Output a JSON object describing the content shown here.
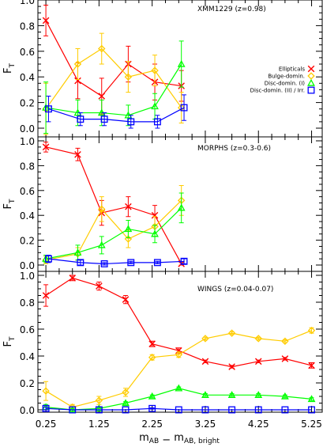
{
  "chart_data": [
    {
      "type": "line",
      "title": "XMM1229 (z=0.98)",
      "ylabel": "F_T",
      "xlim": [
        0.1,
        5.45
      ],
      "ylim": [
        0.0,
        1.0
      ],
      "y_ticks": [
        0.0,
        0.2,
        0.4,
        0.6,
        0.8,
        1.0
      ],
      "y_tick_labels": [
        "0.0",
        "0.2",
        "0.4",
        "0.6",
        "0.8",
        "1.0"
      ],
      "legend_placement": "right",
      "series": [
        {
          "name": "Ellipticals",
          "color": "#ff0000",
          "marker": "x",
          "x": [
            0.25,
            0.85,
            1.3,
            1.8,
            2.3,
            2.8
          ],
          "y": [
            0.84,
            0.37,
            0.25,
            0.5,
            0.36,
            0.33
          ],
          "err": [
            0.12,
            0.14,
            0.14,
            0.14,
            0.14,
            0.12
          ]
        },
        {
          "name": "Bulge-domin.",
          "color": "#ffcc00",
          "marker": "diamond",
          "x": [
            0.25,
            0.85,
            1.3,
            1.8,
            2.3,
            2.8
          ],
          "y": [
            0.15,
            0.5,
            0.62,
            0.4,
            0.45,
            0.16
          ],
          "err": [
            0.2,
            0.12,
            0.12,
            0.12,
            0.12,
            0.12
          ]
        },
        {
          "name": "Disc-domin. (I)",
          "color": "#00ff00",
          "marker": "triangle",
          "x": [
            0.25,
            0.85,
            1.3,
            1.8,
            2.3,
            2.8
          ],
          "y": [
            0.16,
            0.12,
            0.12,
            0.1,
            0.17,
            0.5
          ],
          "err": [
            0.2,
            0.1,
            0.1,
            0.08,
            0.1,
            0.18
          ]
        },
        {
          "name": "Disc-domin. (II) / Irr.",
          "color": "#0000ff",
          "marker": "square",
          "x": [
            0.3,
            0.9,
            1.35,
            1.85,
            2.35,
            2.85
          ],
          "y": [
            0.15,
            0.07,
            0.07,
            0.05,
            0.05,
            0.16
          ],
          "err": [
            0.1,
            0.05,
            0.05,
            0.05,
            0.05,
            0.1
          ]
        }
      ]
    },
    {
      "type": "line",
      "title": "MORPHS (z=0.3-0.6)",
      "ylabel": "F_T",
      "xlim": [
        0.1,
        5.45
      ],
      "ylim": [
        0.0,
        1.0
      ],
      "y_ticks": [
        0.0,
        0.2,
        0.4,
        0.6,
        0.8,
        1.0
      ],
      "y_tick_labels": [
        "0.0",
        "0.2",
        "0.4",
        "0.6",
        "0.8",
        "1.0"
      ],
      "series": [
        {
          "name": "Ellipticals",
          "color": "#ff0000",
          "marker": "x",
          "x": [
            0.25,
            0.85,
            1.3,
            1.8,
            2.3,
            2.8
          ],
          "y": [
            0.95,
            0.89,
            0.42,
            0.47,
            0.4,
            0.01
          ],
          "err": [
            0.04,
            0.05,
            0.1,
            0.08,
            0.08,
            0.01
          ]
        },
        {
          "name": "Bulge-domin.",
          "color": "#ffcc00",
          "marker": "diamond",
          "x": [
            0.25,
            0.85,
            1.3,
            1.8,
            2.3,
            2.8
          ],
          "y": [
            0.04,
            0.09,
            0.45,
            0.21,
            0.31,
            0.52
          ],
          "err": [
            0.03,
            0.05,
            0.1,
            0.07,
            0.08,
            0.12
          ]
        },
        {
          "name": "Disc-domin. (I)",
          "color": "#00ff00",
          "marker": "triangle",
          "x": [
            0.25,
            0.85,
            1.3,
            1.8,
            2.3,
            2.8
          ],
          "y": [
            0.05,
            0.1,
            0.16,
            0.29,
            0.25,
            0.46
          ],
          "err": [
            0.03,
            0.06,
            0.07,
            0.07,
            0.07,
            0.12
          ]
        },
        {
          "name": "Disc-domin. (II) / Irr.",
          "color": "#0000ff",
          "marker": "square",
          "x": [
            0.3,
            0.9,
            1.35,
            1.85,
            2.35,
            2.85
          ],
          "y": [
            0.05,
            0.02,
            0.01,
            0.02,
            0.02,
            0.03
          ],
          "err": [
            0.03,
            0.02,
            0.01,
            0.01,
            0.01,
            0.02
          ]
        }
      ]
    },
    {
      "type": "line",
      "title": "WINGS (z=0.04-0.07)",
      "ylabel": "F_T",
      "xlabel": "m_AB - m_AB, bright",
      "xlim": [
        0.1,
        5.45
      ],
      "ylim": [
        0.0,
        1.0
      ],
      "y_ticks": [
        0.0,
        0.2,
        0.4,
        0.6,
        0.8,
        1.0
      ],
      "y_tick_labels": [
        "0.0",
        "0.2",
        "0.4",
        "0.6",
        "0.8",
        "1.0"
      ],
      "x_ticks": [
        0.25,
        1.25,
        2.25,
        3.25,
        4.25,
        5.25
      ],
      "x_tick_labels": [
        "0.25",
        "1.25",
        "2.25",
        "3.25",
        "4.25",
        "5.25"
      ],
      "series": [
        {
          "name": "Ellipticals",
          "color": "#ff0000",
          "marker": "x",
          "x": [
            0.25,
            0.75,
            1.25,
            1.75,
            2.25,
            2.75,
            3.25,
            3.75,
            4.25,
            4.75,
            5.25
          ],
          "y": [
            0.85,
            0.98,
            0.92,
            0.82,
            0.49,
            0.44,
            0.36,
            0.32,
            0.36,
            0.38,
            0.33
          ],
          "err": [
            0.08,
            0.02,
            0.03,
            0.03,
            0.02,
            0.02,
            0.01,
            0.01,
            0.01,
            0.01,
            0.02
          ]
        },
        {
          "name": "Bulge-domin.",
          "color": "#ffcc00",
          "marker": "diamond",
          "x": [
            0.25,
            0.75,
            1.25,
            1.75,
            2.25,
            2.75,
            3.25,
            3.75,
            4.25,
            4.75,
            5.25
          ],
          "y": [
            0.14,
            0.02,
            0.07,
            0.13,
            0.39,
            0.41,
            0.53,
            0.57,
            0.53,
            0.51,
            0.59
          ],
          "err": [
            0.07,
            0.02,
            0.03,
            0.03,
            0.02,
            0.02,
            0.01,
            0.01,
            0.01,
            0.01,
            0.02
          ]
        },
        {
          "name": "Disc-domin. (I)",
          "color": "#00ff00",
          "marker": "triangle",
          "x": [
            0.25,
            0.75,
            1.25,
            1.75,
            2.25,
            2.75,
            3.25,
            3.75,
            4.25,
            4.75,
            5.25
          ],
          "y": [
            0.02,
            0.0,
            0.01,
            0.05,
            0.1,
            0.16,
            0.11,
            0.11,
            0.11,
            0.1,
            0.08
          ],
          "err": [
            0.02,
            0.01,
            0.01,
            0.01,
            0.01,
            0.01,
            0.01,
            0.01,
            0.01,
            0.01,
            0.01
          ]
        },
        {
          "name": "Disc-domin. (II) / Irr.",
          "color": "#0000ff",
          "marker": "square",
          "x": [
            0.25,
            0.75,
            1.25,
            1.75,
            2.25,
            2.75,
            3.25,
            3.75,
            4.25,
            4.75,
            5.25
          ],
          "y": [
            0.01,
            0.0,
            0.0,
            0.0,
            0.01,
            0.0,
            0.0,
            0.0,
            0.0,
            0.0,
            0.0
          ],
          "err": [
            0.01,
            0.0,
            0.0,
            0.0,
            0.005,
            0.0,
            0.0,
            0.0,
            0.0,
            0.0,
            0.0
          ]
        }
      ]
    }
  ]
}
